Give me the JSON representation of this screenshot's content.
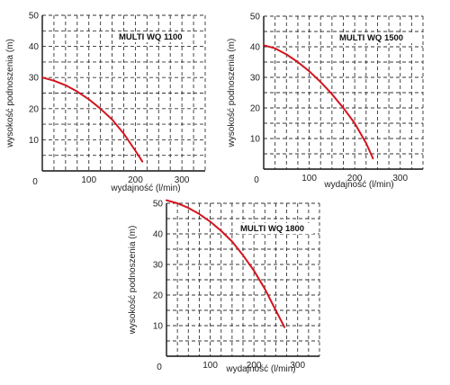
{
  "chart_data": [
    {
      "type": "line",
      "title": "MULTI WQ 1100",
      "xlabel": "wydajność (l/min)",
      "ylabel": "wysokość podnoszenia (m)",
      "xlim": [
        0,
        350
      ],
      "ylim": [
        0,
        50
      ],
      "xticks": [
        0,
        100,
        200,
        300
      ],
      "yticks": [
        10,
        20,
        30,
        40,
        50
      ],
      "x_origin_label": "0",
      "grid": true,
      "series": [
        {
          "color": "#d4141f",
          "x": [
            0,
            25,
            50,
            75,
            100,
            125,
            150,
            175,
            200,
            215
          ],
          "y": [
            30,
            29,
            27.5,
            25.5,
            23,
            20,
            16.5,
            12,
            6.5,
            3
          ]
        }
      ]
    },
    {
      "type": "line",
      "title": "MULTI WQ 1500",
      "xlabel": "wydajność (l/min)",
      "ylabel": "wysokość podnoszenia (m)",
      "xlim": [
        0,
        350
      ],
      "ylim": [
        0,
        50
      ],
      "xticks": [
        0,
        100,
        200,
        300
      ],
      "yticks": [
        10,
        20,
        30,
        40,
        50
      ],
      "x_origin_label": "0",
      "grid": true,
      "series": [
        {
          "color": "#d4141f",
          "x": [
            0,
            25,
            50,
            75,
            100,
            125,
            150,
            175,
            200,
            225,
            240
          ],
          "y": [
            40.5,
            39.5,
            37.5,
            35,
            32,
            28.5,
            24.5,
            20,
            15,
            8.5,
            3.5
          ]
        }
      ]
    },
    {
      "type": "line",
      "title": "MULTI WQ 1800",
      "xlabel": "wydajność (l/min)",
      "ylabel": "wysokość podnoszenia (m)",
      "xlim": [
        0,
        350
      ],
      "ylim": [
        0,
        50
      ],
      "xticks": [
        0,
        100,
        200,
        300
      ],
      "yticks": [
        10,
        20,
        30,
        40,
        50
      ],
      "x_origin_label": "0",
      "grid": true,
      "series": [
        {
          "color": "#d4141f",
          "x": [
            0,
            25,
            50,
            75,
            100,
            125,
            150,
            175,
            200,
            225,
            250,
            270
          ],
          "y": [
            51,
            50,
            48.5,
            46.5,
            44,
            41,
            37.5,
            33,
            28,
            22,
            15,
            9.5
          ]
        }
      ]
    }
  ]
}
